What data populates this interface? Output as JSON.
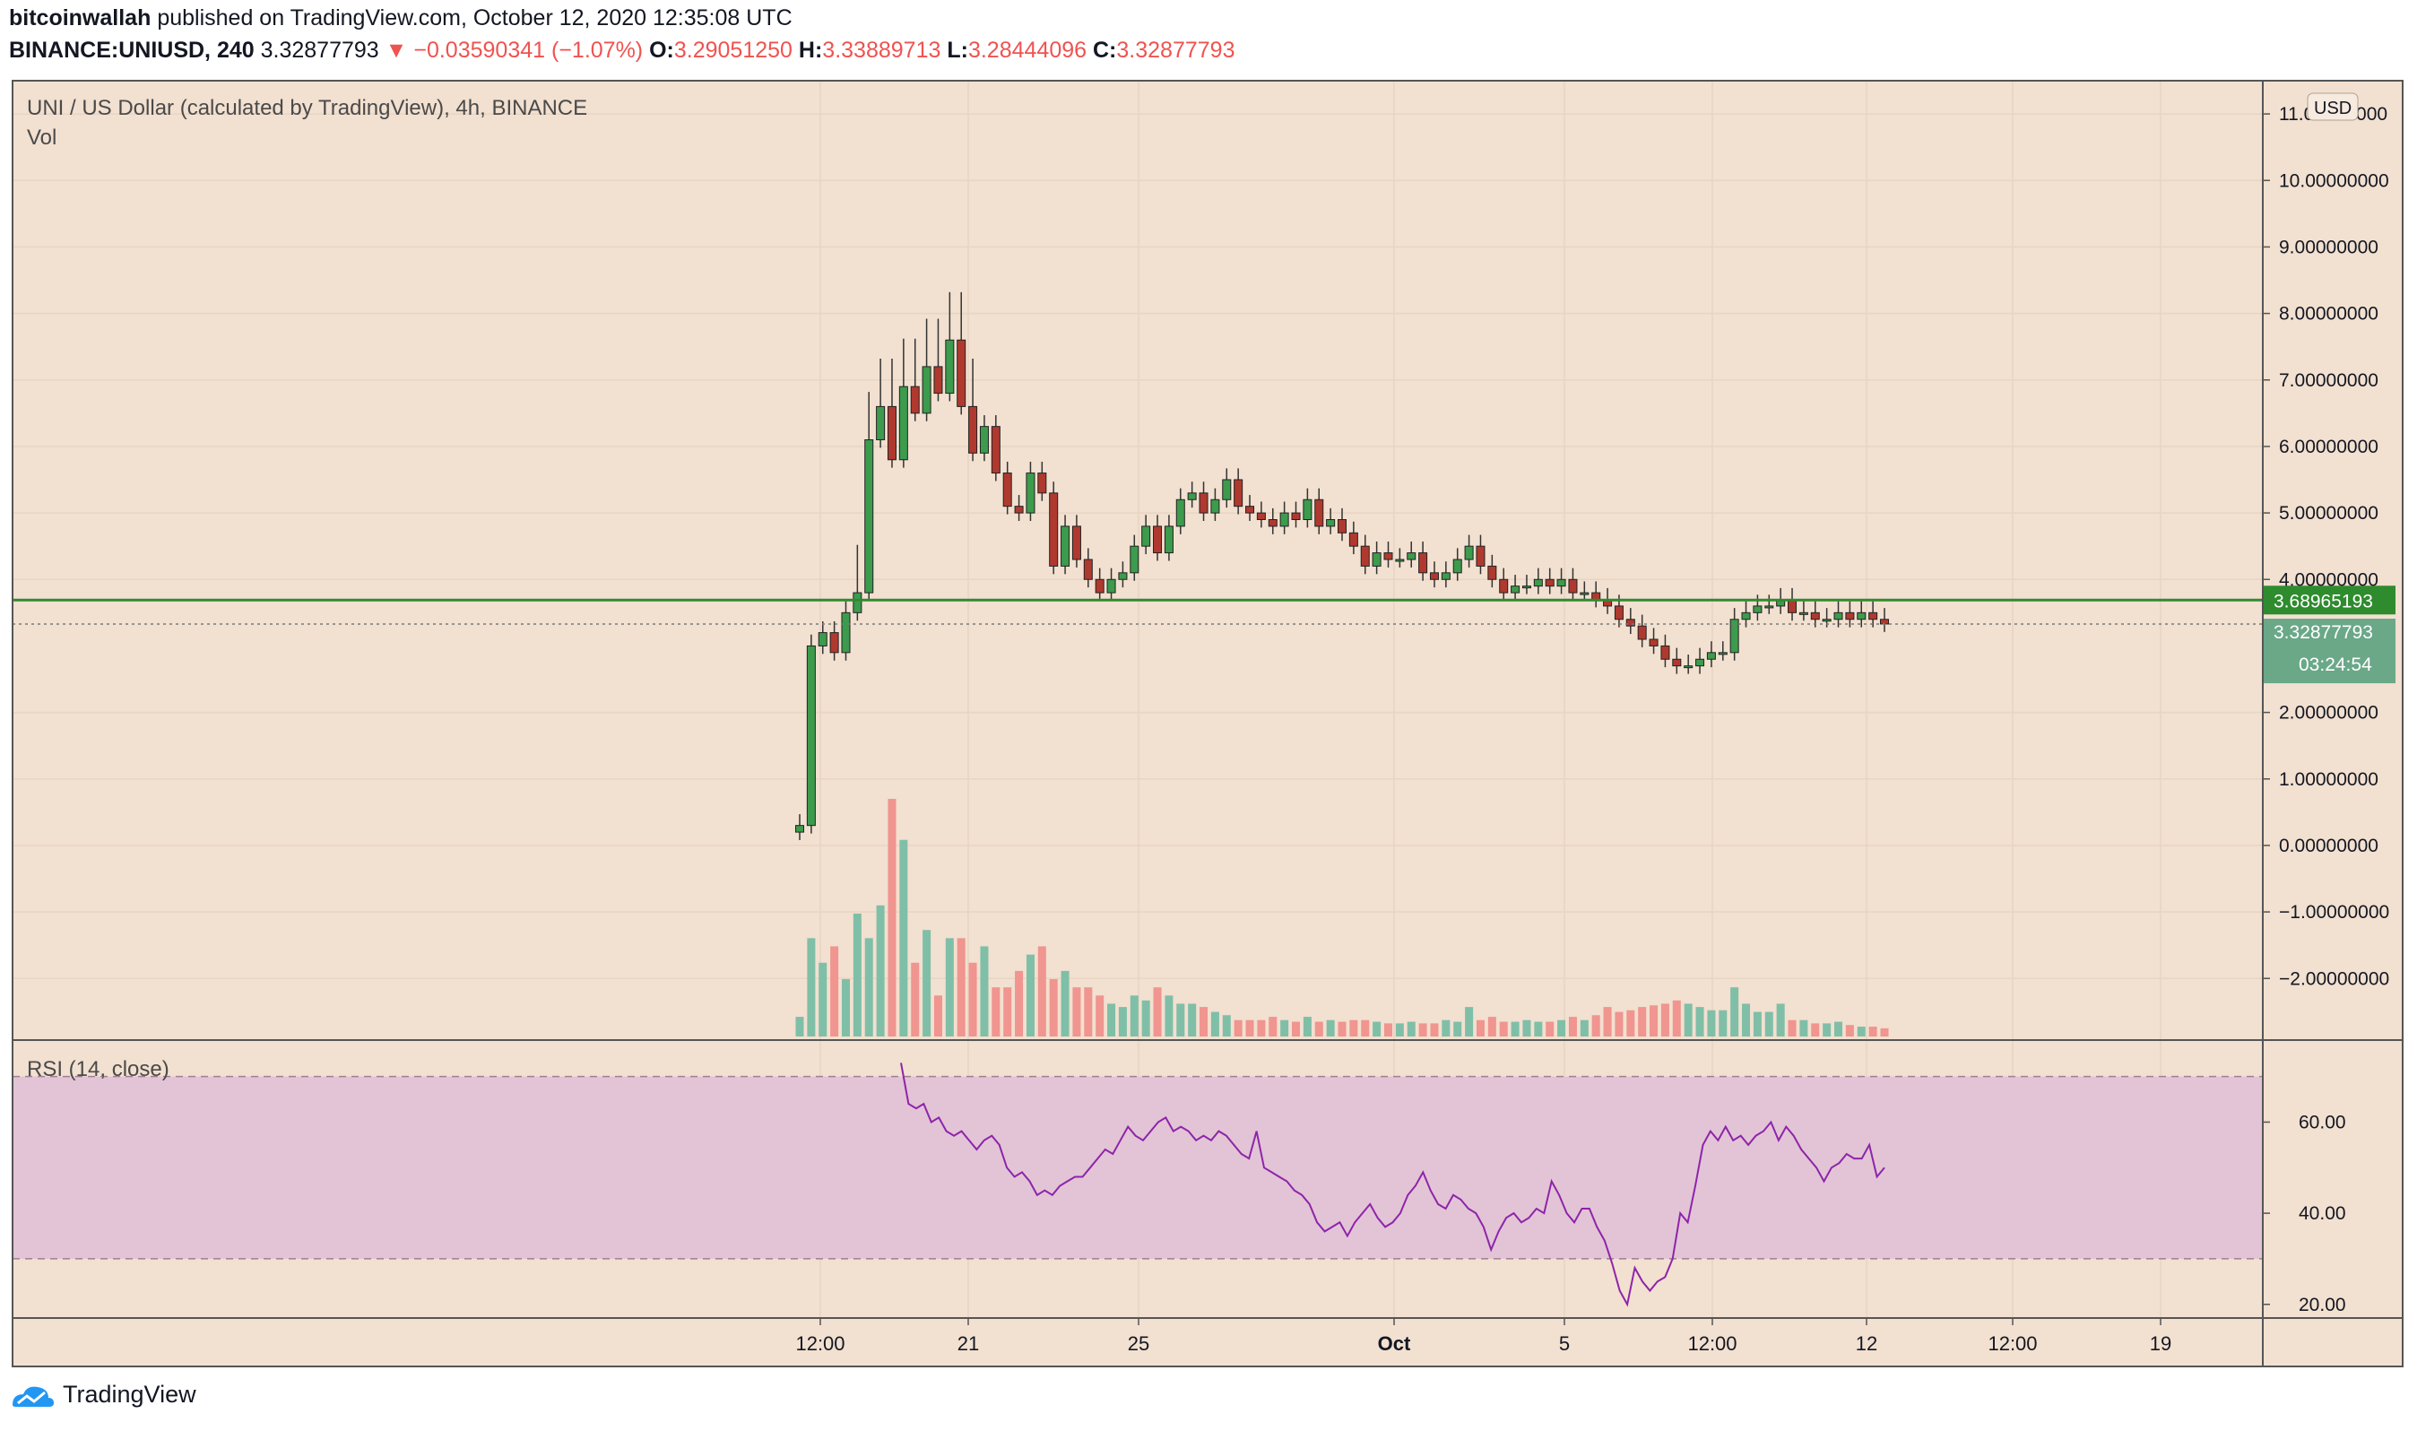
{
  "header": {
    "author": "bitcoinwallah",
    "published_text": "published on TradingView.com, October 12, 2020 12:35:08 UTC",
    "symbol": "BINANCE:UNIUSD, 240",
    "last": "3.32877793",
    "change": "▼ −0.03590341 (−1.07%)",
    "o_label": "O:",
    "o_val": "3.29051250",
    "h_label": "H:",
    "h_val": "3.33889713",
    "l_label": "L:",
    "l_val": "3.28444096",
    "c_label": "C:",
    "c_val": "3.32877793"
  },
  "footer": {
    "brand": "TradingView"
  },
  "colors": {
    "background": "#f2e0d0",
    "up": "#26a69a",
    "down": "#ef5350",
    "candle_up_fill": "#3c9b4c",
    "candle_down_fill": "#b0392f",
    "horizontal_line": "#2e8b2e",
    "rsi_line": "#8e24aa",
    "rsi_band": "#e2c4d6"
  },
  "chart_data": [
    {
      "type": "candlestick",
      "title": "UNI / US Dollar (calculated by TradingView), 4h, BINANCE",
      "subtitle": "Vol",
      "currency_label": "USD",
      "ylim": [
        -2.9,
        11.5
      ],
      "y_ticks": [
        "11.00000000",
        "10.00000000",
        "9.00000000",
        "8.00000000",
        "7.00000000",
        "6.00000000",
        "5.00000000",
        "4.00000000",
        "2.00000000",
        "1.00000000",
        "0.00000000",
        "−1.00000000",
        "−2.00000000"
      ],
      "y_tick_values": [
        11,
        10,
        9,
        8,
        7,
        6,
        5,
        4,
        2,
        1,
        0,
        -1,
        -2
      ],
      "horizontal_line": 3.68965193,
      "horizontal_line_label": "3.68965193",
      "last_price": 3.32877793,
      "last_price_label": "3.32877793",
      "countdown_label": "03:24:54",
      "x_ticks": [
        "12:00",
        "21",
        "25",
        "Oct",
        "5",
        "12:00",
        "12",
        "12:00",
        "19"
      ],
      "closes": [
        0.3,
        3.0,
        3.2,
        2.9,
        3.5,
        3.8,
        6.1,
        6.6,
        5.8,
        6.9,
        6.5,
        7.2,
        6.8,
        7.6,
        6.6,
        5.9,
        6.3,
        5.6,
        5.1,
        5.0,
        5.6,
        5.3,
        4.2,
        4.8,
        4.3,
        4.0,
        3.8,
        4.0,
        4.1,
        4.5,
        4.8,
        4.4,
        4.8,
        5.2,
        5.3,
        5.0,
        5.2,
        5.5,
        5.1,
        5.0,
        4.9,
        4.8,
        5.0,
        4.9,
        5.2,
        4.8,
        4.9,
        4.7,
        4.5,
        4.2,
        4.4,
        4.3,
        4.3,
        4.4,
        4.1,
        4.0,
        4.1,
        4.3,
        4.5,
        4.2,
        4.0,
        3.8,
        3.9,
        3.9,
        4.0,
        3.9,
        4.0,
        3.8,
        3.8,
        3.7,
        3.6,
        3.4,
        3.3,
        3.1,
        3.0,
        2.8,
        2.7,
        2.7,
        2.8,
        2.9,
        2.9,
        3.4,
        3.5,
        3.6,
        3.6,
        3.7,
        3.5,
        3.5,
        3.4,
        3.4,
        3.5,
        3.4,
        3.5,
        3.4,
        3.33
      ],
      "volumes": [
        1.2,
        6.0,
        4.5,
        5.5,
        3.5,
        7.5,
        6.0,
        8.0,
        14.5,
        12.0,
        4.5,
        6.5,
        2.5,
        6.0,
        6.0,
        4.5,
        5.5,
        3.0,
        3.0,
        4.0,
        5.0,
        5.5,
        3.5,
        4.0,
        3.0,
        3.0,
        2.5,
        2.0,
        1.8,
        2.5,
        2.2,
        3.0,
        2.5,
        2.0,
        2.0,
        1.8,
        1.5,
        1.3,
        1.0,
        1.0,
        1.0,
        1.2,
        1.0,
        0.9,
        1.2,
        0.9,
        1.0,
        0.9,
        1.0,
        1.0,
        0.9,
        0.8,
        0.8,
        0.9,
        0.8,
        0.8,
        1.0,
        0.9,
        1.8,
        1.0,
        1.2,
        0.9,
        0.9,
        1.0,
        0.9,
        0.9,
        1.0,
        1.2,
        1.0,
        1.3,
        1.8,
        1.5,
        1.6,
        1.8,
        1.9,
        2.0,
        2.2,
        2.0,
        1.8,
        1.6,
        1.6,
        3.0,
        2.0,
        1.5,
        1.5,
        2.0,
        1.0,
        1.0,
        0.8,
        0.8,
        0.9,
        0.7,
        0.6,
        0.6,
        0.5
      ]
    },
    {
      "type": "line",
      "title": "RSI (14, close)",
      "ylim": [
        17,
        78
      ],
      "band": [
        30,
        70
      ],
      "y_ticks": [
        "60.00",
        "40.00",
        "20.00"
      ],
      "y_tick_values": [
        60,
        40,
        20
      ],
      "values": [
        73,
        64,
        63,
        64,
        60,
        61,
        58,
        57,
        58,
        56,
        54,
        56,
        57,
        55,
        50,
        48,
        49,
        47,
        44,
        45,
        44,
        46,
        47,
        48,
        48,
        50,
        52,
        54,
        53,
        56,
        59,
        57,
        56,
        58,
        60,
        61,
        58,
        59,
        58,
        56,
        57,
        56,
        58,
        57,
        55,
        53,
        52,
        58,
        50,
        49,
        48,
        47,
        45,
        44,
        42,
        38,
        36,
        37,
        38,
        35,
        38,
        40,
        42,
        39,
        37,
        38,
        40,
        44,
        46,
        49,
        45,
        42,
        41,
        44,
        43,
        41,
        40,
        37,
        32,
        36,
        39,
        40,
        38,
        39,
        41,
        40,
        47,
        44,
        40,
        38,
        41,
        41,
        37,
        34,
        29,
        23,
        20,
        28,
        25,
        23,
        25,
        26,
        30,
        40,
        38,
        46,
        55,
        58,
        56,
        59,
        56,
        57,
        55,
        57,
        58,
        60,
        56,
        59,
        57,
        54,
        52,
        50,
        47,
        50,
        51,
        53,
        52,
        52,
        55,
        48,
        50
      ]
    }
  ]
}
